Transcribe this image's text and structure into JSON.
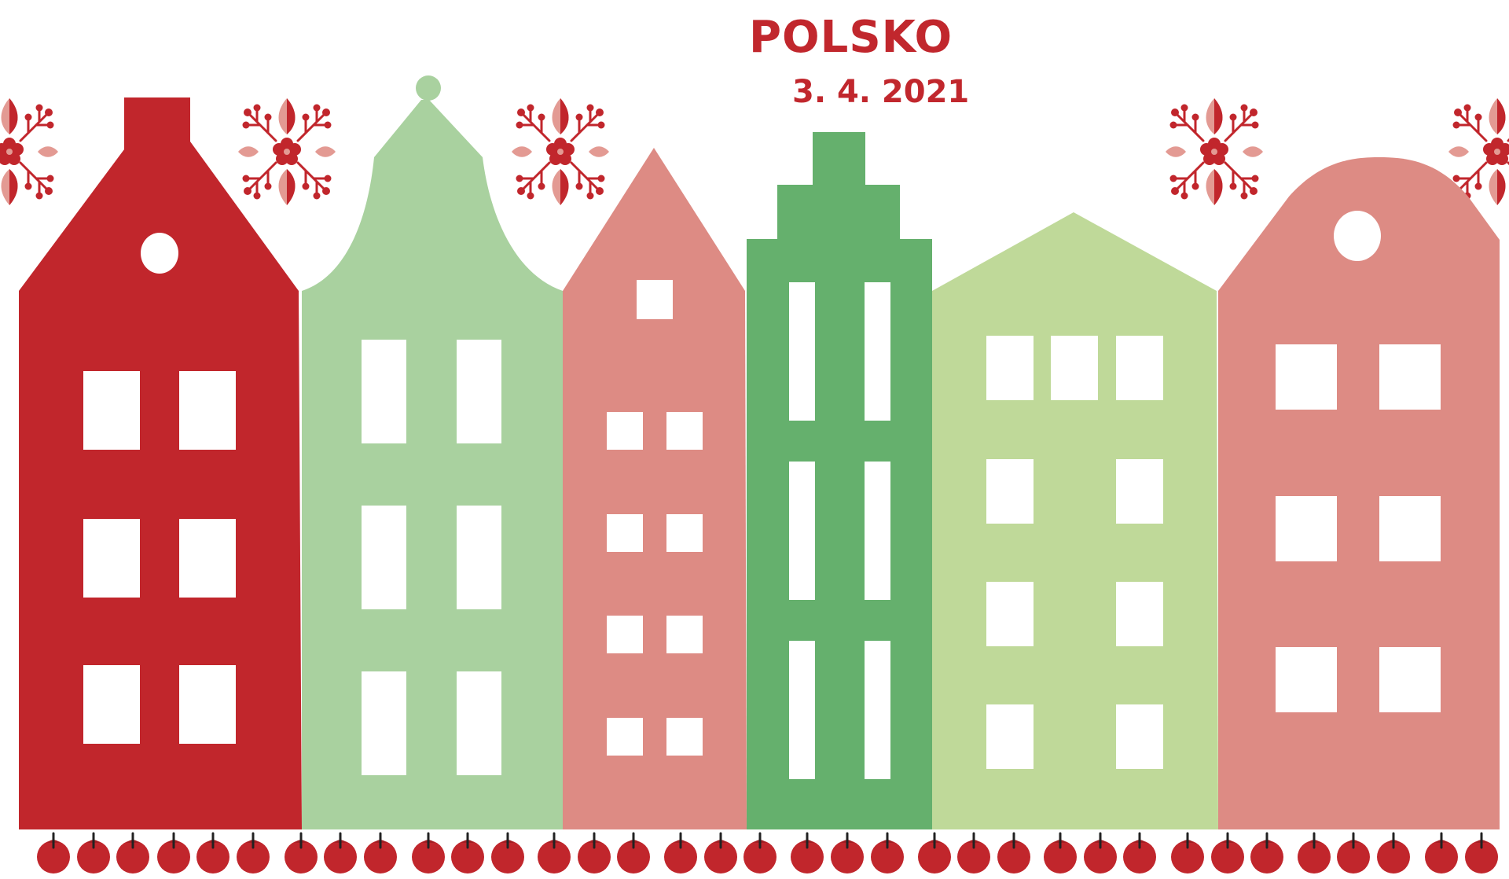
{
  "title": "POLSKO",
  "date": "3. 4. 2021",
  "colors": {
    "red": "#c1262c",
    "light_green": "#a9d19f",
    "salmon": "#dd8b84",
    "green": "#65b06d",
    "pale_green": "#bfd999",
    "window": "#ffffff",
    "ornament_light": "#e39a93",
    "apple": "#c1262c",
    "stem": "#222222"
  },
  "icons": {
    "ornament": "folk-flower-ornament-icon",
    "apple": "apple-icon"
  }
}
